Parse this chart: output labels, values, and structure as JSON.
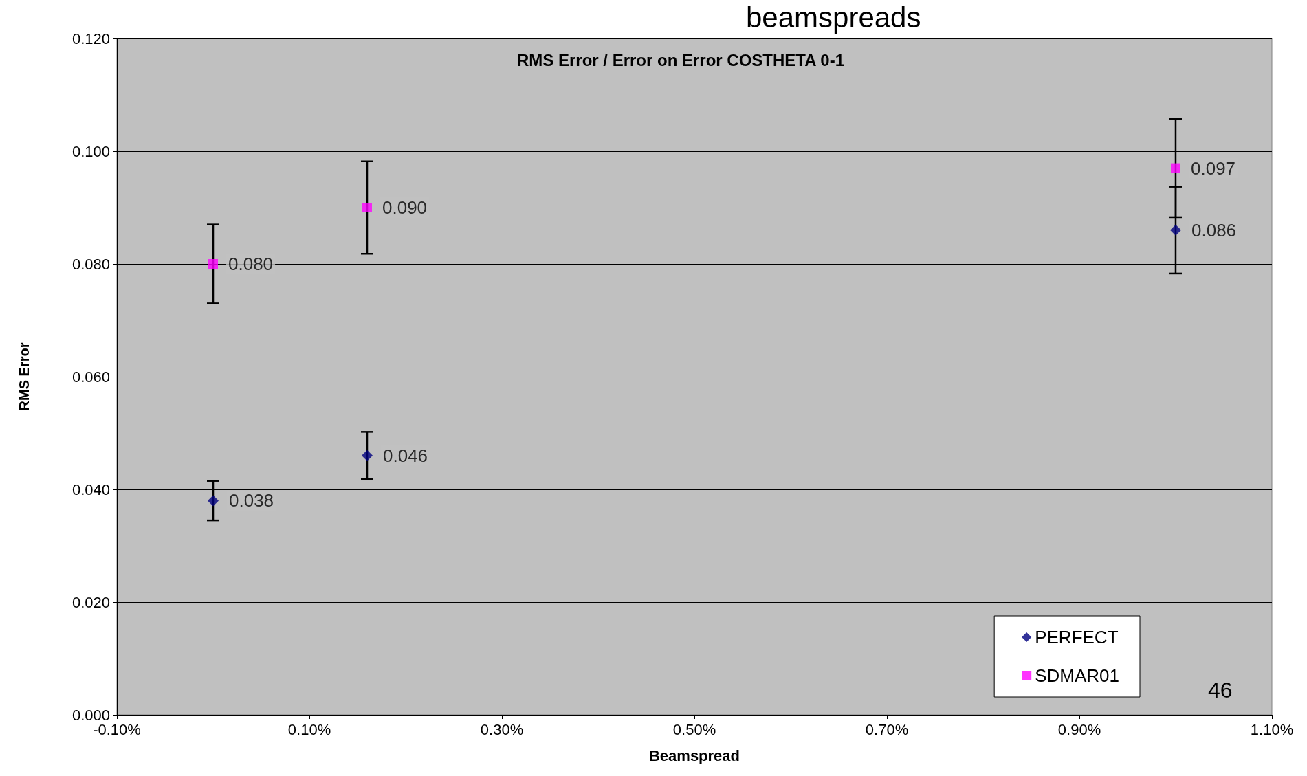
{
  "chart_data": {
    "type": "scatter",
    "title": "RMS Error / Error on Error COSTHETA 0-1",
    "xlabel": "Beamspread",
    "ylabel": "RMS Error",
    "annotations": [
      "beamspreads",
      "46"
    ],
    "x": [
      0,
      0.16,
      1.0
    ],
    "series": [
      {
        "name": "PERFECT",
        "color": "#000080",
        "marker": "diamond",
        "values": [
          0.038,
          0.046,
          0.086
        ],
        "errors": [
          0.0035,
          0.0042,
          0.0077
        ],
        "value_labels": [
          "0.038",
          "0.046",
          "0.086"
        ]
      },
      {
        "name": "SDMAR01",
        "color": "#ff00ff",
        "marker": "square",
        "values": [
          0.08,
          0.09,
          0.097
        ],
        "errors": [
          0.007,
          0.0082,
          0.0087
        ],
        "value_labels": [
          "0.080",
          "0.090",
          "0.097"
        ]
      }
    ],
    "xlim": [
      -0.1,
      1.1
    ],
    "xticks": [
      {
        "value": -0.1,
        "label": "-0.10%"
      },
      {
        "value": 0.1,
        "label": "0.10%"
      },
      {
        "value": 0.3,
        "label": "0.30%"
      },
      {
        "value": 0.5,
        "label": "0.50%"
      },
      {
        "value": 0.7,
        "label": "0.70%"
      },
      {
        "value": 0.9,
        "label": "0.90%"
      },
      {
        "value": 1.1,
        "label": "1.10%"
      }
    ],
    "ylim": [
      0,
      0.12
    ],
    "yticks": [
      {
        "value": 0,
        "label": "0.000"
      },
      {
        "value": 0.02,
        "label": "0.020"
      },
      {
        "value": 0.04,
        "label": "0.040"
      },
      {
        "value": 0.06,
        "label": "0.060"
      },
      {
        "value": 0.08,
        "label": "0.080"
      },
      {
        "value": 0.1,
        "label": "0.100"
      },
      {
        "value": 0.12,
        "label": "0.120"
      }
    ],
    "grid": "y",
    "legend": "bottom right"
  }
}
